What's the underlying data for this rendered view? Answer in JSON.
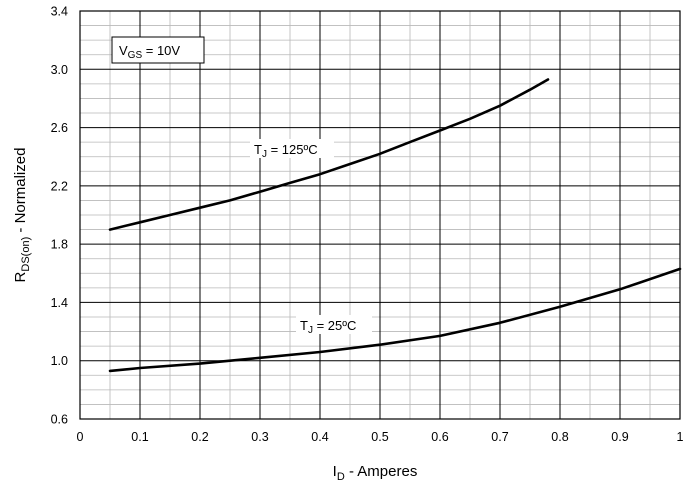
{
  "chart_data": {
    "type": "line",
    "title": "",
    "xlabel": {
      "main": "I",
      "sub": "D",
      "rest": " - Amperes"
    },
    "ylabel": {
      "main": "R",
      "sub": "DS(on)",
      "rest": " - Normalized"
    },
    "xlim": [
      0,
      1
    ],
    "ylim": [
      0.6,
      3.4
    ],
    "x_ticks": [
      "0",
      "0.1",
      "0.2",
      "0.3",
      "0.4",
      "0.5",
      "0.6",
      "0.7",
      "0.8",
      "0.9",
      "1"
    ],
    "y_ticks": [
      "0.6",
      "1.0",
      "1.4",
      "1.8",
      "2.2",
      "2.6",
      "3.0",
      "3.4"
    ],
    "grid": true,
    "legend_box": {
      "main": "V",
      "sub": "GS",
      "rest": " = 10V"
    },
    "series": [
      {
        "name": "T_J = 125ºC",
        "label": {
          "main": "T",
          "sub": "J",
          "rest": " = 125ºC"
        },
        "x": [
          0.05,
          0.1,
          0.15,
          0.2,
          0.25,
          0.3,
          0.35,
          0.4,
          0.45,
          0.5,
          0.55,
          0.6,
          0.65,
          0.7,
          0.75,
          0.78
        ],
        "y": [
          1.9,
          1.95,
          2.0,
          2.05,
          2.1,
          2.16,
          2.22,
          2.28,
          2.35,
          2.42,
          2.5,
          2.58,
          2.66,
          2.75,
          2.86,
          2.93
        ]
      },
      {
        "name": "T_J = 25ºC",
        "label": {
          "main": "T",
          "sub": "J",
          "rest": " = 25ºC"
        },
        "x": [
          0.05,
          0.1,
          0.2,
          0.3,
          0.4,
          0.5,
          0.6,
          0.7,
          0.8,
          0.9,
          1.0
        ],
        "y": [
          0.93,
          0.95,
          0.98,
          1.02,
          1.06,
          1.11,
          1.17,
          1.26,
          1.37,
          1.49,
          1.63
        ]
      }
    ]
  }
}
